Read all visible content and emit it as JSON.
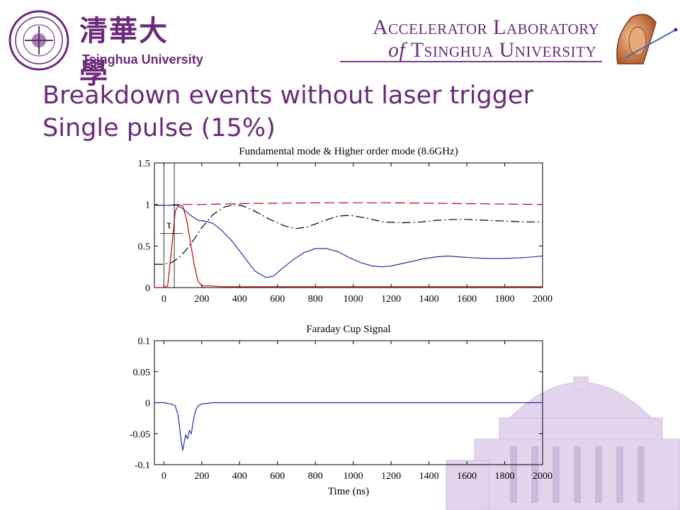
{
  "header": {
    "university_cn": "清華大學",
    "university_en": "Tsinghua University",
    "lab_line1": "Accelerator Laboratory",
    "lab_line2_of": "of",
    "lab_line2_rest": "Tsinghua University",
    "brand_color": "#6b2a7a"
  },
  "slide": {
    "title_line1": "Breakdown events without laser trigger",
    "title_line2": "Single pulse (15%)"
  },
  "chart_data": [
    {
      "type": "line",
      "title": "Fundamental mode & Higher order mode (8.6GHz)",
      "xlabel": "",
      "ylabel": "",
      "xlim": [
        -50,
        2000
      ],
      "ylim": [
        0,
        1.5
      ],
      "x_ticks": [
        "0",
        "200",
        "400",
        "600",
        "800",
        "1000",
        "1200",
        "1400",
        "1600",
        "1800",
        "2000"
      ],
      "y_ticks": [
        "0",
        "0.5",
        "1",
        "1.5"
      ],
      "annotation": "τ",
      "series": [
        {
          "color": "#c00000",
          "style": "dashed",
          "x": [
            -50,
            0,
            30,
            60,
            100,
            150,
            200,
            400,
            800,
            1200,
            1600,
            2000
          ],
          "y": [
            0.99,
            0.99,
            0.99,
            1.0,
            1.0,
            1.0,
            1.0,
            1.01,
            1.02,
            1.02,
            1.01,
            1.0
          ]
        },
        {
          "color": "#c00000",
          "style": "solid",
          "x": [
            -50,
            0,
            20,
            40,
            60,
            80,
            100,
            120,
            140,
            160,
            180,
            200,
            250,
            300,
            600,
            1000,
            1400,
            1800,
            2000
          ],
          "y": [
            0.0,
            0.0,
            0.02,
            0.45,
            0.92,
            1.0,
            0.98,
            0.82,
            0.55,
            0.28,
            0.08,
            0.02,
            0.02,
            0.01,
            0.01,
            0.01,
            0.01,
            0.01,
            0.01
          ]
        },
        {
          "color": "#000000",
          "style": "dashdot",
          "x": [
            -50,
            0,
            40,
            80,
            120,
            160,
            200,
            260,
            320,
            380,
            420,
            480,
            560,
            640,
            700,
            760,
            840,
            920,
            980,
            1060,
            1160,
            1260,
            1360,
            1440,
            1520,
            1600,
            1700,
            1800,
            1900,
            2000
          ],
          "y": [
            0.28,
            0.28,
            0.3,
            0.36,
            0.46,
            0.58,
            0.72,
            0.88,
            0.97,
            1.0,
            0.98,
            0.92,
            0.82,
            0.74,
            0.71,
            0.73,
            0.8,
            0.86,
            0.87,
            0.84,
            0.79,
            0.78,
            0.79,
            0.81,
            0.82,
            0.82,
            0.81,
            0.8,
            0.79,
            0.79
          ]
        },
        {
          "color": "#1f2fa8",
          "style": "solid",
          "x": [
            -50,
            0,
            40,
            70,
            100,
            140,
            180,
            220,
            260,
            300,
            360,
            420,
            480,
            540,
            580,
            620,
            680,
            740,
            800,
            860,
            920,
            980,
            1040,
            1100,
            1150,
            1200,
            1260,
            1320,
            1380,
            1440,
            1500,
            1560,
            1620,
            1700,
            1800,
            1900,
            2000
          ],
          "y": [
            0.99,
            0.99,
            0.99,
            0.99,
            0.95,
            0.87,
            0.81,
            0.8,
            0.77,
            0.7,
            0.56,
            0.38,
            0.2,
            0.12,
            0.14,
            0.22,
            0.33,
            0.42,
            0.47,
            0.47,
            0.43,
            0.36,
            0.3,
            0.26,
            0.25,
            0.26,
            0.29,
            0.32,
            0.35,
            0.37,
            0.38,
            0.37,
            0.36,
            0.35,
            0.35,
            0.36,
            0.38
          ]
        }
      ]
    },
    {
      "type": "line",
      "title": "Faraday Cup Signal",
      "xlabel": "Time (ns)",
      "ylabel": "",
      "xlim": [
        -50,
        2000
      ],
      "ylim": [
        -0.1,
        0.1
      ],
      "x_ticks": [
        "0",
        "200",
        "400",
        "600",
        "800",
        "1000",
        "1200",
        "1400",
        "1600",
        "1800",
        "2000"
      ],
      "y_ticks": [
        "0.1",
        "0.05",
        "0",
        "-0.05",
        "-0.1"
      ],
      "series": [
        {
          "color": "#1f2fa8",
          "style": "solid",
          "x": [
            -50,
            0,
            40,
            60,
            75,
            85,
            95,
            100,
            105,
            115,
            125,
            135,
            145,
            155,
            165,
            180,
            200,
            260,
            400,
            800,
            1200,
            1600,
            2000
          ],
          "y": [
            0.0,
            0.0,
            -0.002,
            -0.005,
            -0.02,
            -0.045,
            -0.07,
            -0.077,
            -0.068,
            -0.052,
            -0.058,
            -0.045,
            -0.05,
            -0.03,
            -0.015,
            -0.005,
            -0.002,
            0.0,
            0.0,
            0.0,
            0.0,
            0.0,
            0.0
          ]
        }
      ]
    }
  ]
}
